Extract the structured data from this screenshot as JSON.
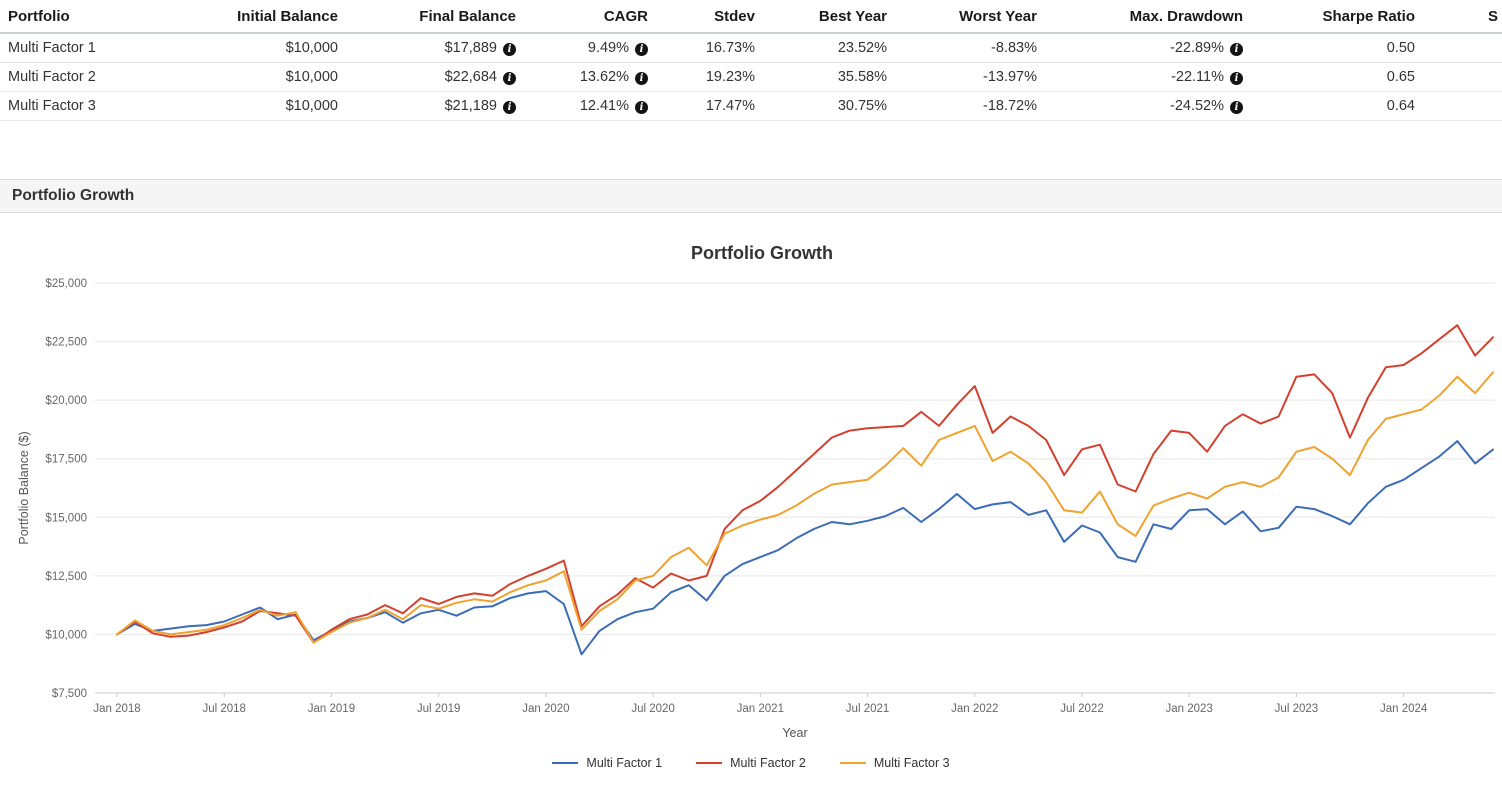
{
  "table": {
    "columns": [
      "Portfolio",
      "Initial Balance",
      "Final Balance",
      "CAGR",
      "Stdev",
      "Best Year",
      "Worst Year",
      "Max. Drawdown",
      "Sharpe Ratio",
      "S"
    ],
    "rows": [
      {
        "cells": [
          "Multi Factor 1",
          "$10,000",
          "$17,889",
          "9.49%",
          "16.73%",
          "23.52%",
          "-8.83%",
          "-22.89%",
          "0.50",
          ""
        ]
      },
      {
        "cells": [
          "Multi Factor 2",
          "$10,000",
          "$22,684",
          "13.62%",
          "19.23%",
          "35.58%",
          "-13.97%",
          "-22.11%",
          "0.65",
          ""
        ]
      },
      {
        "cells": [
          "Multi Factor 3",
          "$10,000",
          "$21,189",
          "12.41%",
          "17.47%",
          "30.75%",
          "-18.72%",
          "-24.52%",
          "0.64",
          ""
        ]
      }
    ]
  },
  "section": {
    "title": "Portfolio Growth"
  },
  "chart_data": {
    "type": "line",
    "title": "Portfolio Growth",
    "xlabel": "Year",
    "ylabel": "Portfolio Balance ($)",
    "ylim": [
      7500,
      25000
    ],
    "yticks": [
      7500,
      10000,
      12500,
      15000,
      17500,
      20000,
      22500,
      25000
    ],
    "ytick_labels": [
      "$7,500",
      "$10,000",
      "$12,500",
      "$15,000",
      "$17,500",
      "$20,000",
      "$22,500",
      "$25,000"
    ],
    "xtick_labels": [
      "Jan 2018",
      "Jul 2018",
      "Jan 2019",
      "Jul 2019",
      "Jan 2020",
      "Jul 2020",
      "Jan 2021",
      "Jul 2021",
      "Jan 2022",
      "Jul 2022",
      "Jan 2023",
      "Jul 2023",
      "Jan 2024"
    ],
    "legend_position": "bottom",
    "grid": "horizontal",
    "x": [
      "2018-01",
      "2018-02",
      "2018-03",
      "2018-04",
      "2018-05",
      "2018-06",
      "2018-07",
      "2018-08",
      "2018-09",
      "2018-10",
      "2018-11",
      "2018-12",
      "2019-01",
      "2019-02",
      "2019-03",
      "2019-04",
      "2019-05",
      "2019-06",
      "2019-07",
      "2019-08",
      "2019-09",
      "2019-10",
      "2019-11",
      "2019-12",
      "2020-01",
      "2020-02",
      "2020-03",
      "2020-04",
      "2020-05",
      "2020-06",
      "2020-07",
      "2020-08",
      "2020-09",
      "2020-10",
      "2020-11",
      "2020-12",
      "2021-01",
      "2021-02",
      "2021-03",
      "2021-04",
      "2021-05",
      "2021-06",
      "2021-07",
      "2021-08",
      "2021-09",
      "2021-10",
      "2021-11",
      "2021-12",
      "2022-01",
      "2022-02",
      "2022-03",
      "2022-04",
      "2022-05",
      "2022-06",
      "2022-07",
      "2022-08",
      "2022-09",
      "2022-10",
      "2022-11",
      "2022-12",
      "2023-01",
      "2023-02",
      "2023-03",
      "2023-04",
      "2023-05",
      "2023-06",
      "2023-07",
      "2023-08",
      "2023-09",
      "2023-10",
      "2023-11",
      "2023-12",
      "2024-01",
      "2024-02",
      "2024-03",
      "2024-04",
      "2024-05",
      "2024-06"
    ],
    "series": [
      {
        "name": "Multi Factor 1",
        "color": "#3b6cb7",
        "values": [
          10000,
          10450,
          10150,
          10250,
          10350,
          10400,
          10550,
          10850,
          11150,
          10650,
          10850,
          9750,
          10150,
          10550,
          10700,
          10950,
          10500,
          10900,
          11050,
          10800,
          11150,
          11200,
          11550,
          11750,
          11850,
          11300,
          9150,
          10150,
          10650,
          10950,
          11100,
          11800,
          12100,
          11450,
          12500,
          13000,
          13300,
          13600,
          14100,
          14500,
          14800,
          14700,
          14850,
          15050,
          15400,
          14800,
          15350,
          16000,
          15350,
          15550,
          15650,
          15100,
          15300,
          13950,
          14650,
          14350,
          13300,
          13100,
          14700,
          14500,
          15300,
          15350,
          14700,
          15250,
          14400,
          14550,
          15450,
          15350,
          15050,
          14700,
          15600,
          16300,
          16600,
          17100,
          17600,
          18250,
          17300,
          17889
        ]
      },
      {
        "name": "Multi Factor 2",
        "color": "#d4402e",
        "values": [
          10000,
          10550,
          10050,
          9900,
          9950,
          10100,
          10300,
          10550,
          11000,
          10900,
          10800,
          9650,
          10200,
          10650,
          10850,
          11250,
          10900,
          11550,
          11300,
          11600,
          11750,
          11650,
          12150,
          12500,
          12800,
          13150,
          10350,
          11200,
          11700,
          12400,
          12000,
          12600,
          12300,
          12500,
          14500,
          15300,
          15700,
          16300,
          17000,
          17700,
          18400,
          18700,
          18800,
          18850,
          18900,
          19500,
          18900,
          19800,
          20600,
          18600,
          19300,
          18900,
          18300,
          16800,
          17900,
          18100,
          16400,
          16100,
          17700,
          18700,
          18600,
          17800,
          18900,
          19400,
          19000,
          19300,
          21000,
          21100,
          20300,
          18400,
          20100,
          21400,
          21500,
          22000,
          22600,
          23200,
          21900,
          22684
        ]
      },
      {
        "name": "Multi Factor 3",
        "color": "#f0a22e",
        "values": [
          10000,
          10600,
          10150,
          10000,
          10100,
          10200,
          10400,
          10700,
          11050,
          10800,
          10950,
          9650,
          10100,
          10500,
          10700,
          11050,
          10650,
          11250,
          11100,
          11350,
          11500,
          11400,
          11800,
          12100,
          12300,
          12700,
          10200,
          11000,
          11500,
          12300,
          12500,
          13300,
          13700,
          12950,
          14300,
          14650,
          14900,
          15100,
          15500,
          16000,
          16400,
          16500,
          16600,
          17200,
          17950,
          17200,
          18300,
          18600,
          18900,
          17400,
          17800,
          17300,
          16500,
          15300,
          15200,
          16100,
          14700,
          14200,
          15500,
          15800,
          16050,
          15800,
          16300,
          16500,
          16300,
          16700,
          17800,
          18000,
          17500,
          16800,
          18300,
          19200,
          19400,
          19600,
          20200,
          21000,
          20300,
          21189
        ]
      }
    ]
  }
}
